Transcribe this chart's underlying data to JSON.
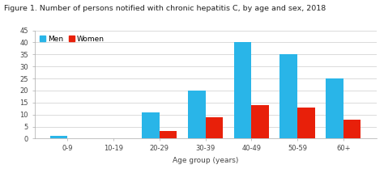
{
  "title": "Figure 1. Number of persons notified with chronic hepatitis C, by age and sex, 2018",
  "categories": [
    "0-9",
    "10-19",
    "20-29",
    "30-39",
    "40-49",
    "50-59",
    "60+"
  ],
  "men": [
    1,
    0,
    11,
    20,
    40,
    35,
    25
  ],
  "women": [
    0,
    0,
    3,
    9,
    14,
    13,
    8
  ],
  "men_color": "#29b5e8",
  "women_color": "#e8200a",
  "xlabel": "Age group (years)",
  "ylim": [
    0,
    45
  ],
  "yticks": [
    0,
    5,
    10,
    15,
    20,
    25,
    30,
    35,
    40,
    45
  ],
  "background_color": "#ffffff",
  "plot_bg_color": "#ffffff",
  "title_fontsize": 6.8,
  "axis_fontsize": 6.5,
  "tick_fontsize": 6.0,
  "legend_fontsize": 6.5,
  "bar_width": 0.38
}
